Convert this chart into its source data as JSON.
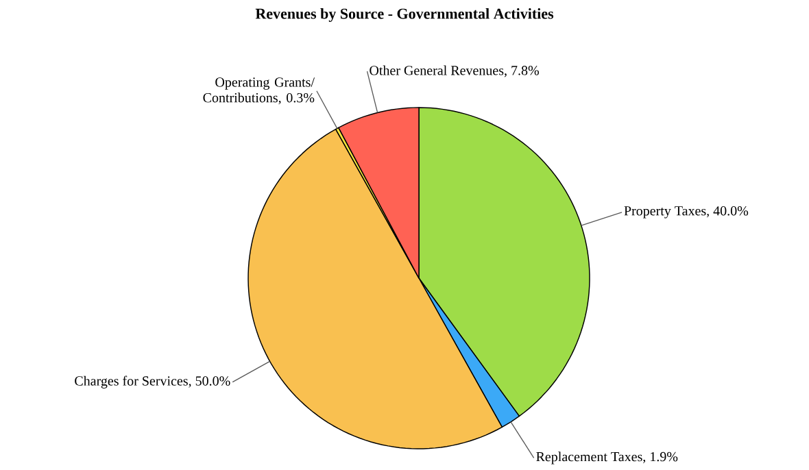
{
  "chart_data": {
    "type": "pie",
    "title": "Revenues by Source - Governmental Activities",
    "categories": [
      "Property Taxes",
      "Replacement Taxes",
      "Charges for Services",
      "Operating Grants/ Contributions",
      "Other General Revenues"
    ],
    "values": [
      40.0,
      1.9,
      50.0,
      0.3,
      7.8
    ],
    "value_labels": [
      ", 40.0%",
      ", 1.9%",
      ", 50.0%",
      ", 0.3%",
      ", 7.8%"
    ],
    "colors": [
      "#9edc48",
      "#3ba9f7",
      "#f9c050",
      "#f2e43c",
      "#ff6254"
    ]
  }
}
